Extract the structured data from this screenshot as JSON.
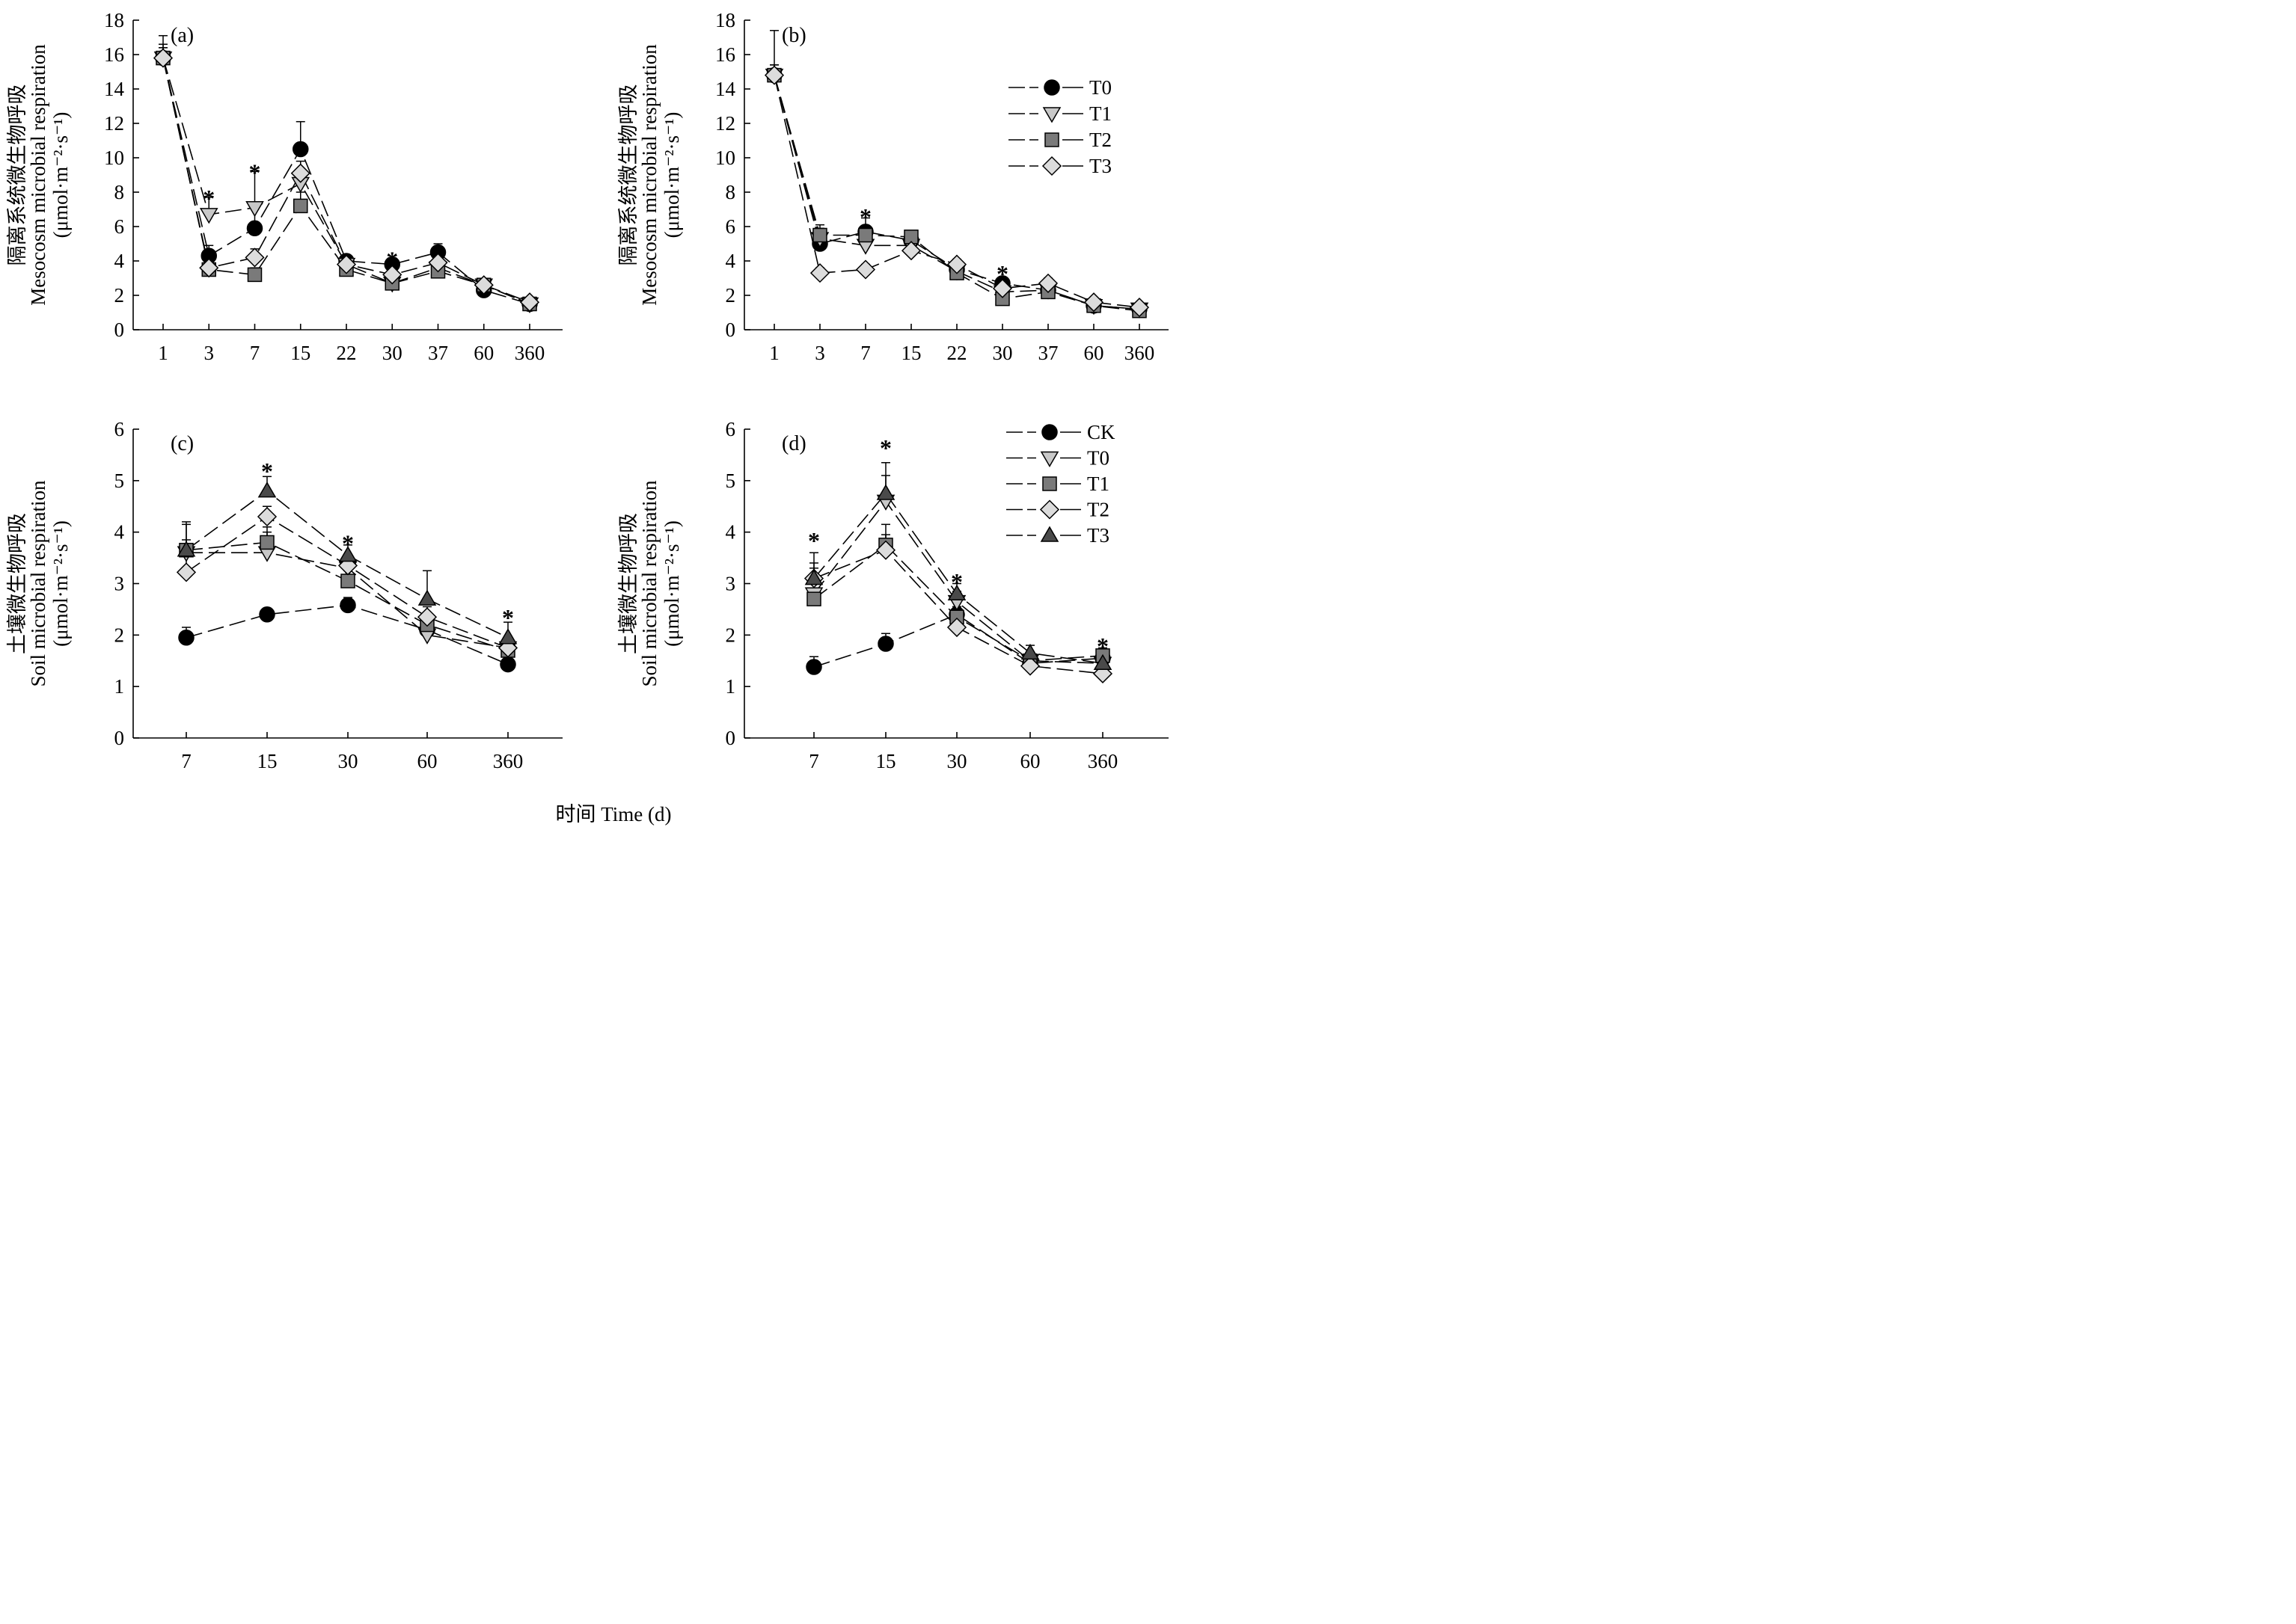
{
  "figure": {
    "xlabel": "时间 Time (d)"
  },
  "chart_data": [
    {
      "panel": "(a)",
      "type": "line",
      "ylabel_cn": "隔离系统微生物呼吸",
      "ylabel_en": "Mesocosm microbial respiration",
      "ylabel_unit": "(μmol·m⁻²·s⁻¹)",
      "categories": [
        "1",
        "3",
        "7",
        "15",
        "22",
        "30",
        "37",
        "60",
        "360"
      ],
      "yticks": [
        "0",
        "2",
        "4",
        "6",
        "8",
        "10",
        "12",
        "14",
        "16",
        "18"
      ],
      "ylim": [
        0,
        18
      ],
      "legend": null,
      "series": [
        {
          "name": "T0",
          "marker": "circle",
          "fill": "#000000",
          "values": [
            15.8,
            4.3,
            5.9,
            10.5,
            4.0,
            3.8,
            4.5,
            2.3,
            1.5
          ],
          "errors": [
            1.3,
            0.6,
            1.2,
            1.6,
            0.3,
            0.3,
            0.5,
            0.3,
            0.2
          ]
        },
        {
          "name": "T1",
          "marker": "triangle-down",
          "fill": "#c8c8c8",
          "values": [
            15.8,
            6.7,
            7.1,
            8.5,
            3.8,
            2.7,
            3.6,
            2.6,
            1.5
          ],
          "errors": [
            0.8,
            1.0,
            2.1,
            0.8,
            0.3,
            0.3,
            0.3,
            0.3,
            0.2
          ]
        },
        {
          "name": "T2",
          "marker": "square",
          "fill": "#7a7a7a",
          "values": [
            15.8,
            3.5,
            3.2,
            7.2,
            3.5,
            2.7,
            3.4,
            2.6,
            1.5
          ],
          "errors": [
            0.6,
            0.3,
            0.4,
            0.8,
            0.3,
            0.3,
            0.3,
            0.3,
            0.2
          ]
        },
        {
          "name": "T3",
          "marker": "diamond",
          "fill": "#dcdcdc",
          "values": [
            15.8,
            3.6,
            4.2,
            9.1,
            3.8,
            3.2,
            3.9,
            2.6,
            1.6
          ],
          "errors": [
            0.6,
            0.3,
            0.5,
            0.7,
            0.3,
            0.3,
            0.3,
            0.3,
            0.2
          ]
        }
      ],
      "significance": [
        {
          "category": "3",
          "value": 7.7
        },
        {
          "category": "7",
          "value": 9.2
        },
        {
          "category": "30",
          "value": 4.1
        }
      ]
    },
    {
      "panel": "(b)",
      "type": "line",
      "ylabel_cn": "隔离系统微生物呼吸",
      "ylabel_en": "Mesocosm microbial respiration",
      "ylabel_unit": "(μmol·m⁻²·s⁻¹)",
      "categories": [
        "1",
        "3",
        "7",
        "15",
        "22",
        "30",
        "37",
        "60",
        "360"
      ],
      "yticks": [
        "0",
        "2",
        "4",
        "6",
        "8",
        "10",
        "12",
        "14",
        "16",
        "18"
      ],
      "ylim": [
        0,
        18
      ],
      "legend": "top-right",
      "series": [
        {
          "name": "T0",
          "marker": "circle",
          "fill": "#000000",
          "values": [
            14.8,
            5.0,
            5.7,
            5.2,
            3.5,
            2.7,
            2.3,
            1.4,
            1.2
          ],
          "errors": [
            2.6,
            0.9,
            0.8,
            0.4,
            0.3,
            0.3,
            0.3,
            0.2,
            0.2
          ]
        },
        {
          "name": "T1",
          "marker": "triangle-down",
          "fill": "#c8c8c8",
          "values": [
            14.8,
            5.3,
            4.9,
            4.9,
            3.4,
            2.2,
            2.3,
            1.4,
            1.2
          ],
          "errors": [
            0.6,
            0.5,
            0.4,
            0.4,
            0.3,
            0.3,
            0.3,
            0.2,
            0.2
          ]
        },
        {
          "name": "T2",
          "marker": "square",
          "fill": "#7a7a7a",
          "values": [
            14.8,
            5.5,
            5.5,
            5.4,
            3.3,
            1.8,
            2.2,
            1.4,
            1.1
          ],
          "errors": [
            0.6,
            0.6,
            0.5,
            0.3,
            0.3,
            0.3,
            0.3,
            0.2,
            0.2
          ]
        },
        {
          "name": "T3",
          "marker": "diamond",
          "fill": "#dcdcdc",
          "values": [
            14.8,
            3.3,
            3.5,
            4.6,
            3.8,
            2.4,
            2.7,
            1.6,
            1.3
          ],
          "errors": [
            0.6,
            0.3,
            0.3,
            0.3,
            0.3,
            0.3,
            0.3,
            0.2,
            0.2
          ]
        }
      ],
      "significance": [
        {
          "category": "7",
          "value": 6.6
        },
        {
          "category": "30",
          "value": 3.3
        }
      ]
    },
    {
      "panel": "(c)",
      "type": "line",
      "ylabel_cn": "土壤微生物呼吸",
      "ylabel_en": "Soil microbial respiration",
      "ylabel_unit": "(μmol·m⁻²·s⁻¹)",
      "categories": [
        "7",
        "15",
        "30",
        "60",
        "360"
      ],
      "yticks": [
        "0",
        "1",
        "2",
        "3",
        "4",
        "5",
        "6"
      ],
      "ylim": [
        0,
        6
      ],
      "legend": null,
      "series": [
        {
          "name": "CK",
          "marker": "circle",
          "fill": "#000000",
          "values": [
            1.95,
            2.4,
            2.58,
            2.1,
            1.43
          ],
          "errors": [
            0.2,
            0.1,
            0.15,
            0.1,
            0.1
          ]
        },
        {
          "name": "T0",
          "marker": "triangle-down",
          "fill": "#c8c8c8",
          "values": [
            3.6,
            3.6,
            3.3,
            2.0,
            1.75
          ],
          "errors": [
            0.6,
            0.5,
            0.2,
            0.2,
            0.2
          ]
        },
        {
          "name": "T1",
          "marker": "square",
          "fill": "#7a7a7a",
          "values": [
            3.65,
            3.8,
            3.05,
            2.2,
            1.7
          ],
          "errors": [
            0.2,
            0.2,
            0.2,
            0.2,
            0.2
          ]
        },
        {
          "name": "T2",
          "marker": "diamond",
          "fill": "#dcdcdc",
          "values": [
            3.22,
            4.3,
            3.35,
            2.35,
            1.75
          ],
          "errors": [
            0.4,
            0.2,
            0.2,
            0.2,
            0.2
          ]
        },
        {
          "name": "T3",
          "marker": "triangle-up",
          "fill": "#4a4a4a",
          "values": [
            3.65,
            4.8,
            3.55,
            2.7,
            1.95
          ],
          "errors": [
            0.5,
            0.28,
            0.2,
            0.55,
            0.3
          ]
        }
      ],
      "significance": [
        {
          "category": "15",
          "value": 5.2
        },
        {
          "category": "30",
          "value": 3.8
        },
        {
          "category": "360",
          "value": 2.35
        }
      ]
    },
    {
      "panel": "(d)",
      "type": "line",
      "ylabel_cn": "土壤微生物呼吸",
      "ylabel_en": "Soil microbial respiration",
      "ylabel_unit": "(μmol·m⁻²·s⁻¹)",
      "categories": [
        "7",
        "15",
        "30",
        "60",
        "360"
      ],
      "yticks": [
        "0",
        "1",
        "2",
        "3",
        "4",
        "5",
        "6"
      ],
      "ylim": [
        0,
        6
      ],
      "legend": "top-right",
      "series": [
        {
          "name": "CK",
          "marker": "circle",
          "fill": "#000000",
          "values": [
            1.38,
            1.83,
            2.4,
            1.45,
            1.55
          ],
          "errors": [
            0.2,
            0.2,
            0.15,
            0.1,
            0.1
          ]
        },
        {
          "name": "T0",
          "marker": "triangle-down",
          "fill": "#c8c8c8",
          "values": [
            2.8,
            4.6,
            2.65,
            1.5,
            1.45
          ],
          "errors": [
            0.5,
            0.5,
            0.2,
            0.15,
            0.15
          ]
        },
        {
          "name": "T1",
          "marker": "square",
          "fill": "#7a7a7a",
          "values": [
            2.7,
            3.75,
            2.35,
            1.5,
            1.6
          ],
          "errors": [
            0.3,
            0.4,
            0.2,
            0.15,
            0.15
          ]
        },
        {
          "name": "T2",
          "marker": "diamond",
          "fill": "#dcdcdc",
          "values": [
            3.1,
            3.65,
            2.15,
            1.4,
            1.25
          ],
          "errors": [
            0.3,
            0.3,
            0.15,
            0.25,
            0.15
          ]
        },
        {
          "name": "T3",
          "marker": "triangle-up",
          "fill": "#4a4a4a",
          "values": [
            3.1,
            4.75,
            2.8,
            1.65,
            1.45
          ],
          "errors": [
            0.5,
            0.6,
            0.2,
            0.15,
            0.15
          ]
        }
      ],
      "significance": [
        {
          "category": "7",
          "value": 3.85
        },
        {
          "category": "15",
          "value": 5.65
        },
        {
          "category": "30",
          "value": 3.05
        },
        {
          "category": "360",
          "value": 1.8
        }
      ]
    }
  ]
}
